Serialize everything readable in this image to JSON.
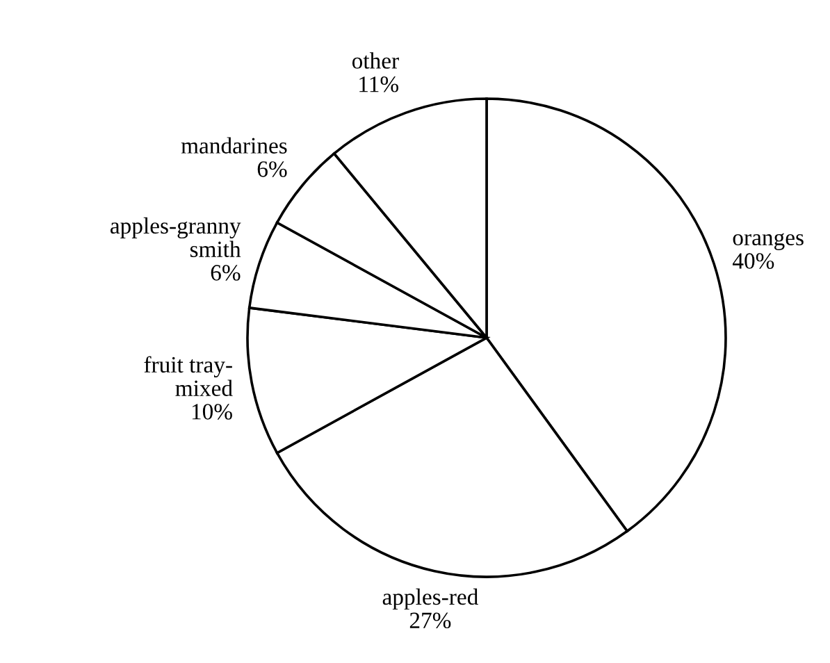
{
  "chart_data": {
    "type": "pie",
    "categories": [
      "oranges",
      "apples-red",
      "fruit tray-\nmixed",
      "apples-granny\nsmith",
      "mandarines",
      "other"
    ],
    "values": [
      40,
      27,
      10,
      6,
      6,
      11
    ],
    "value_labels": [
      "40%",
      "27%",
      "10%",
      "6%",
      "6%",
      "11%"
    ],
    "colors": [
      "#ffffff",
      "#ffffff",
      "#ffffff",
      "#ffffff",
      "#ffffff",
      "#ffffff"
    ]
  }
}
